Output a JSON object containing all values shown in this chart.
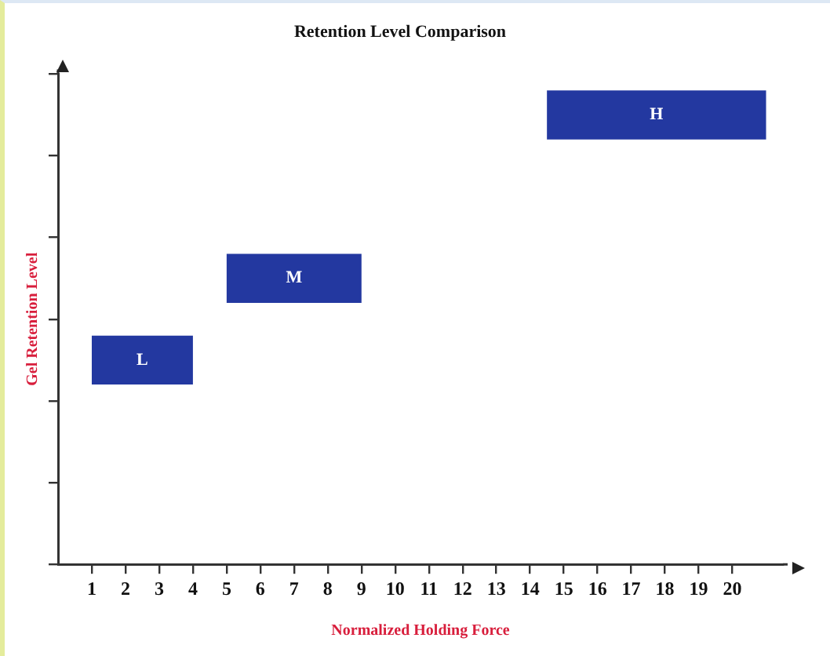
{
  "chart_data": {
    "type": "bar",
    "orientation": "horizontal",
    "title": "Retention Level Comparison",
    "xlabel": "Normalized Holding Force",
    "ylabel": "Gel Retention Level",
    "categories": [
      null,
      null,
      null,
      null,
      null,
      null
    ],
    "values": [
      6.5,
      null,
      4,
      3,
      null,
      null
    ],
    "base": [
      14.5,
      null,
      5,
      1,
      null,
      null
    ],
    "value_labels": [
      "H",
      null,
      "M",
      "L",
      null,
      null
    ],
    "color": "#2338a0",
    "xlim": [
      0,
      21.5
    ],
    "xticks": [
      1,
      2,
      3,
      4,
      5,
      6,
      7,
      8,
      9,
      10,
      11,
      12,
      13,
      14,
      15,
      16,
      17,
      18,
      19,
      20
    ],
    "grid": false,
    "legend": false,
    "tick_labels": "x"
  }
}
